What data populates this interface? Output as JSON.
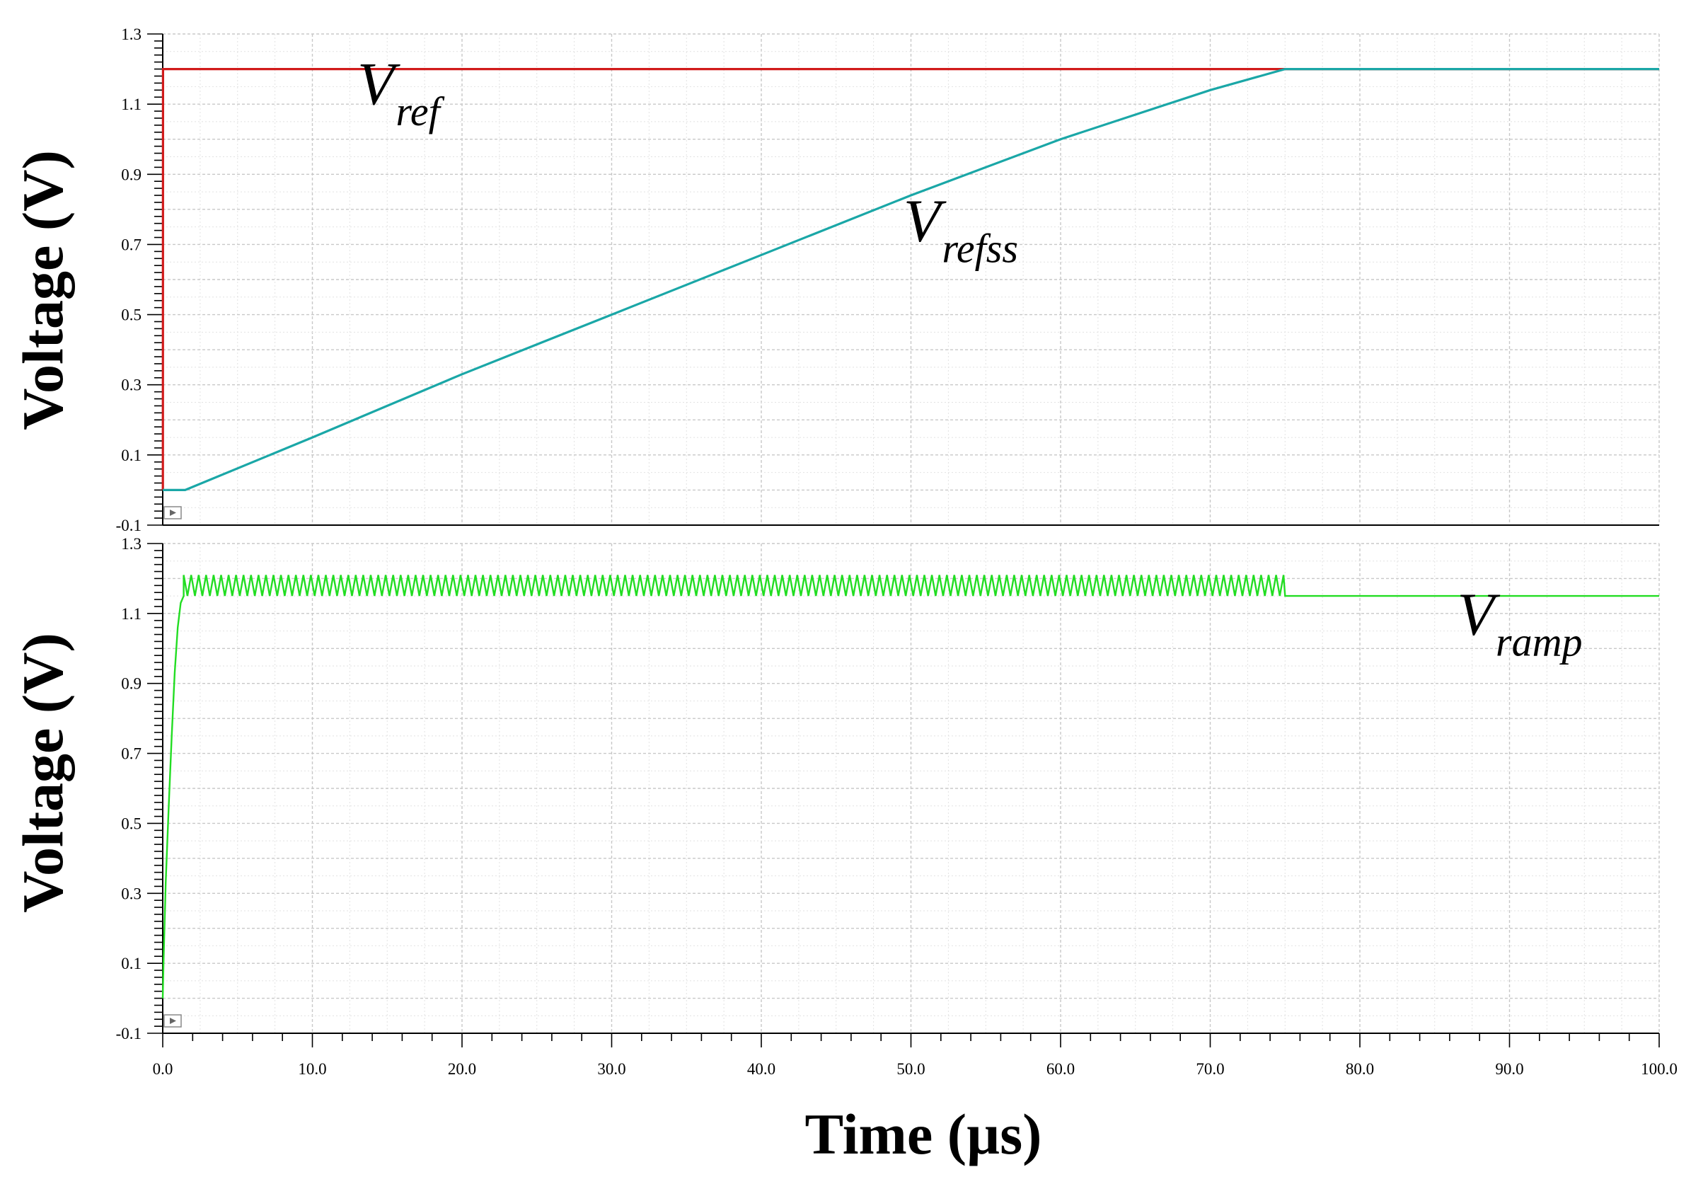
{
  "chart_data": [
    {
      "type": "line",
      "xlim": [
        0,
        100
      ],
      "ylim": [
        -0.1,
        1.3
      ],
      "ylabel": "Voltage (V)",
      "xlabel": "",
      "yticks": [
        "1.3",
        "1.1",
        "0.9",
        "0.7",
        "0.5",
        "0.3",
        "0.1",
        "-0.1"
      ],
      "ytick_values": [
        1.3,
        1.1,
        0.9,
        0.7,
        0.5,
        0.3,
        0.1,
        -0.1
      ],
      "grid": true,
      "series": [
        {
          "name": "V_ref",
          "color": "#d11a1a",
          "x": [
            0,
            0.01,
            0.02,
            75,
            100
          ],
          "y": [
            0.0,
            0.0,
            1.2,
            1.2,
            1.2
          ]
        },
        {
          "name": "V_refss",
          "color": "#1aa7a7",
          "x": [
            0,
            1.5,
            10,
            20,
            30,
            40,
            50,
            60,
            70,
            75,
            100
          ],
          "y": [
            0.0,
            0.0,
            0.15,
            0.33,
            0.5,
            0.67,
            0.84,
            1.0,
            1.14,
            1.2,
            1.2
          ]
        }
      ],
      "annotations": [
        {
          "main": "V",
          "sub": "ref",
          "x": 13.0,
          "y": 1.1
        },
        {
          "main": "V",
          "sub": "refss",
          "x": 49.5,
          "y": 0.71
        }
      ]
    },
    {
      "type": "line",
      "xlim": [
        0,
        100
      ],
      "ylim": [
        -0.1,
        1.3
      ],
      "ylabel": "Voltage (V)",
      "xlabel": "Time (µs)",
      "yticks": [
        "1.3",
        "1.1",
        "0.9",
        "0.7",
        "0.5",
        "0.3",
        "0.1",
        "-0.1"
      ],
      "ytick_values": [
        1.3,
        1.1,
        0.9,
        0.7,
        0.5,
        0.3,
        0.1,
        -0.1
      ],
      "xticks": [
        "0.0",
        "10.0",
        "20.0",
        "30.0",
        "40.0",
        "50.0",
        "60.0",
        "70.0",
        "80.0",
        "90.0",
        "100.0"
      ],
      "xtick_values": [
        0,
        10,
        20,
        30,
        40,
        50,
        60,
        70,
        80,
        90,
        100
      ],
      "grid": true,
      "series": [
        {
          "name": "V_ramp",
          "color": "#22dd22",
          "x": [
            0,
            0.05,
            0.2,
            0.4,
            0.6,
            0.8,
            1.0,
            1.2,
            1.4
          ],
          "y": [
            0.0,
            0.1,
            0.33,
            0.55,
            0.75,
            0.93,
            1.06,
            1.13,
            1.15
          ],
          "oscillation": {
            "from": 1.4,
            "to": 75,
            "low": 1.15,
            "high": 1.21
          },
          "settle": {
            "from": 75,
            "to": 100,
            "value": 1.15
          }
        }
      ],
      "annotations": [
        {
          "main": "V",
          "sub": "ramp",
          "x": 86.5,
          "y": 1.04
        }
      ]
    }
  ]
}
